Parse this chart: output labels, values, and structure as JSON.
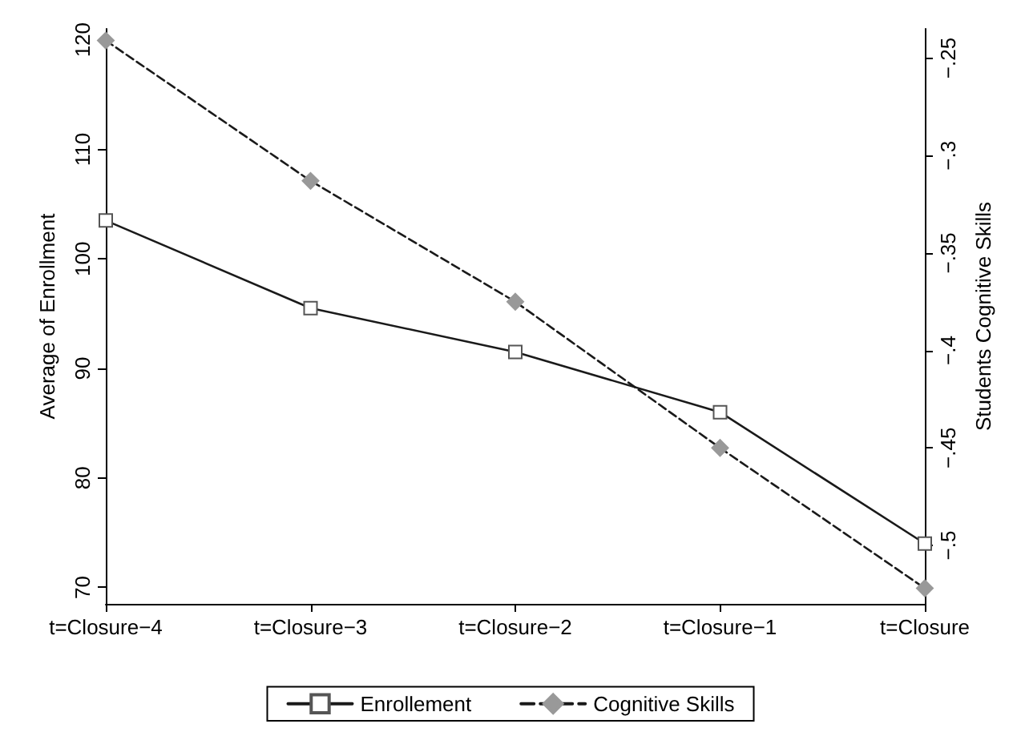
{
  "chart_data": {
    "type": "line",
    "categories": [
      "t=Closure−4",
      "t=Closure−3",
      "t=Closure−2",
      "t=Closure−1",
      "t=Closure"
    ],
    "ylabel": "Average of Enrollment",
    "y2label": "Students Cognitive Skills",
    "ylim": [
      68.5,
      121
    ],
    "yticks": [
      70,
      80,
      90,
      100,
      110,
      120
    ],
    "y2lim": [
      -0.53,
      -0.235
    ],
    "y2ticks": [
      {
        "value": -0.25,
        "label": "−.25"
      },
      {
        "value": -0.3,
        "label": "−.3"
      },
      {
        "value": -0.35,
        "label": "−.35"
      },
      {
        "value": -0.4,
        "label": "−.4"
      },
      {
        "value": -0.45,
        "label": "−.45"
      },
      {
        "value": -0.5,
        "label": "−.5"
      }
    ],
    "grid": false,
    "legend": "bottom",
    "series": [
      {
        "name": "Enrollement",
        "color": "#1a1a1a",
        "marker": "square",
        "line_style": "solid",
        "values": [
          103.5,
          95.5,
          91.5,
          86,
          74
        ]
      },
      {
        "name": "Cognitive Skills",
        "color": "#1a1a1a",
        "marker": "diamond",
        "line_style": "dashed",
        "axis": "y2",
        "values": [
          -0.241,
          -0.313,
          -0.375,
          -0.45,
          -0.522
        ]
      }
    ]
  }
}
